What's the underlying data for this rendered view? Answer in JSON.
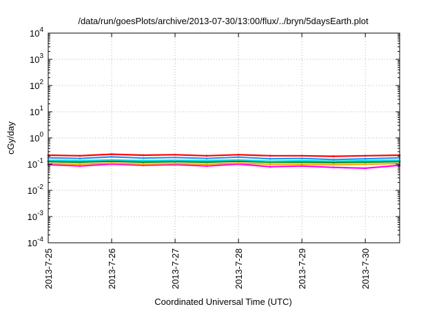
{
  "chart_data": {
    "type": "line",
    "title": "/data/run/goesPlots/archive/2013-07-30/13:00/flux/../bryn/5daysEarth.plot",
    "xlabel": "Coordinated Universal Time (UTC)",
    "ylabel": "cGy/day",
    "yscale": "log",
    "ylim": [
      0.0001,
      10000
    ],
    "xlim": [
      "2013-07-25 00:00",
      "2013-07-30 13:00"
    ],
    "grid": true,
    "y_ticks": [
      {
        "value": 0.0001,
        "base": "10",
        "exp": "-4"
      },
      {
        "value": 0.001,
        "base": "10",
        "exp": "-3"
      },
      {
        "value": 0.01,
        "base": "10",
        "exp": "-2"
      },
      {
        "value": 0.1,
        "base": "10",
        "exp": "-1"
      },
      {
        "value": 1,
        "base": "10",
        "exp": "0"
      },
      {
        "value": 10,
        "base": "10",
        "exp": "1"
      },
      {
        "value": 100,
        "base": "10",
        "exp": "2"
      },
      {
        "value": 1000,
        "base": "10",
        "exp": "3"
      },
      {
        "value": 10000,
        "base": "10",
        "exp": "4"
      }
    ],
    "x_ticks": [
      {
        "value": "2013-07-25",
        "label": "2013-7-25"
      },
      {
        "value": "2013-07-26",
        "label": "2013-7-26"
      },
      {
        "value": "2013-07-27",
        "label": "2013-7-27"
      },
      {
        "value": "2013-07-28",
        "label": "2013-7-28"
      },
      {
        "value": "2013-07-29",
        "label": "2013-7-29"
      },
      {
        "value": "2013-07-30",
        "label": "2013-7-30"
      }
    ],
    "series": [
      {
        "color": "#ff00ff",
        "x": [
          "2013-07-25 00:00",
          "2013-07-25 12:00",
          "2013-07-26 00:00",
          "2013-07-26 12:00",
          "2013-07-27 00:00",
          "2013-07-27 12:00",
          "2013-07-28 00:00",
          "2013-07-28 12:00",
          "2013-07-29 00:00",
          "2013-07-29 12:00",
          "2013-07-30 00:00",
          "2013-07-30 13:00"
        ],
        "y": [
          0.095,
          0.085,
          0.1,
          0.09,
          0.095,
          0.085,
          0.1,
          0.08,
          0.085,
          0.075,
          0.07,
          0.09
        ]
      },
      {
        "color": "#ffa500",
        "x": [
          "2013-07-25 00:00",
          "2013-07-25 12:00",
          "2013-07-26 00:00",
          "2013-07-26 12:00",
          "2013-07-27 00:00",
          "2013-07-27 12:00",
          "2013-07-28 00:00",
          "2013-07-28 12:00",
          "2013-07-29 00:00",
          "2013-07-29 12:00",
          "2013-07-30 00:00",
          "2013-07-30 13:00"
        ],
        "y": [
          0.105,
          0.1,
          0.11,
          0.1,
          0.105,
          0.1,
          0.11,
          0.1,
          0.1,
          0.095,
          0.1,
          0.105
        ]
      },
      {
        "color": "#008000",
        "x": [
          "2013-07-25 00:00",
          "2013-07-25 12:00",
          "2013-07-26 00:00",
          "2013-07-26 12:00",
          "2013-07-27 00:00",
          "2013-07-27 12:00",
          "2013-07-28 00:00",
          "2013-07-28 12:00",
          "2013-07-29 00:00",
          "2013-07-29 12:00",
          "2013-07-30 00:00",
          "2013-07-30 13:00"
        ],
        "y": [
          0.125,
          0.12,
          0.13,
          0.12,
          0.125,
          0.12,
          0.13,
          0.12,
          0.12,
          0.115,
          0.12,
          0.125
        ]
      },
      {
        "color": "#00e0e0",
        "x": [
          "2013-07-25 00:00",
          "2013-07-25 12:00",
          "2013-07-26 00:00",
          "2013-07-26 12:00",
          "2013-07-27 00:00",
          "2013-07-27 12:00",
          "2013-07-28 00:00",
          "2013-07-28 12:00",
          "2013-07-29 00:00",
          "2013-07-29 12:00",
          "2013-07-30 00:00",
          "2013-07-30 13:00"
        ],
        "y": [
          0.14,
          0.135,
          0.145,
          0.135,
          0.14,
          0.135,
          0.145,
          0.13,
          0.135,
          0.13,
          0.135,
          0.14
        ]
      },
      {
        "color": "#1e90ff",
        "x": [
          "2013-07-25 00:00",
          "2013-07-25 12:00",
          "2013-07-26 00:00",
          "2013-07-26 12:00",
          "2013-07-27 00:00",
          "2013-07-27 12:00",
          "2013-07-28 00:00",
          "2013-07-28 12:00",
          "2013-07-29 00:00",
          "2013-07-29 12:00",
          "2013-07-30 00:00",
          "2013-07-30 13:00"
        ],
        "y": [
          0.175,
          0.165,
          0.19,
          0.17,
          0.18,
          0.165,
          0.185,
          0.16,
          0.165,
          0.15,
          0.16,
          0.175
        ]
      },
      {
        "color": "#ff0000",
        "x": [
          "2013-07-25 00:00",
          "2013-07-25 12:00",
          "2013-07-26 00:00",
          "2013-07-26 12:00",
          "2013-07-27 00:00",
          "2013-07-27 12:00",
          "2013-07-28 00:00",
          "2013-07-28 12:00",
          "2013-07-29 00:00",
          "2013-07-29 12:00",
          "2013-07-30 00:00",
          "2013-07-30 13:00"
        ],
        "y": [
          0.22,
          0.21,
          0.24,
          0.22,
          0.23,
          0.21,
          0.23,
          0.21,
          0.21,
          0.2,
          0.21,
          0.22
        ]
      }
    ]
  }
}
